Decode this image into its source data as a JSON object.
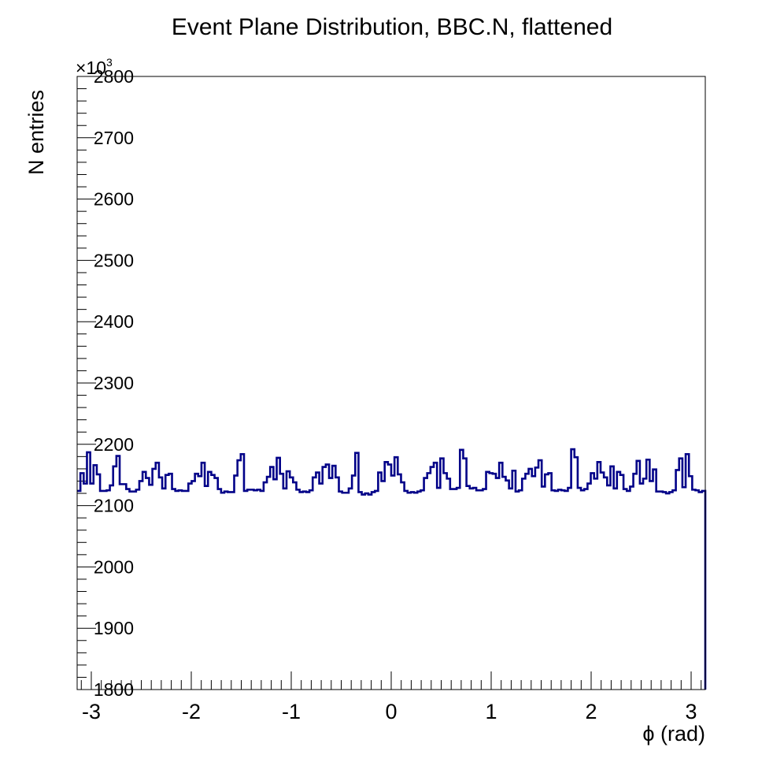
{
  "chart_data": {
    "type": "histogram",
    "title": "Event Plane Distribution, BBC.N, flattened",
    "xlabel": "ϕ (rad)",
    "ylabel": "N entries",
    "xlim": [
      -3.14159,
      3.14159
    ],
    "ylim": [
      1800,
      2800
    ],
    "y_scale_factor": {
      "base": "×10",
      "exponent": "3"
    },
    "x_ticks": [
      -3,
      -2,
      -1,
      0,
      1,
      2,
      3
    ],
    "x_tick_labels": [
      "-3",
      "-2",
      "-1",
      "0",
      "1",
      "2",
      "3"
    ],
    "y_ticks": [
      1800,
      1900,
      2000,
      2100,
      2200,
      2300,
      2400,
      2500,
      2600,
      2700,
      2800
    ],
    "y_tick_labels": [
      "1800",
      "1900",
      "2000",
      "2100",
      "2200",
      "2300",
      "2400",
      "2500",
      "2600",
      "2700",
      "2800"
    ],
    "line_color": "#000088",
    "series": [
      {
        "name": "BBC.N flattened",
        "values": [
          2124,
          2153,
          2136,
          2187,
          2136,
          2166,
          2151,
          2124,
          2124,
          2125,
          2133,
          2164,
          2181,
          2135,
          2135,
          2127,
          2123,
          2123,
          2126,
          2140,
          2155,
          2145,
          2134,
          2160,
          2170,
          2146,
          2128,
          2150,
          2152,
          2127,
          2124,
          2125,
          2124,
          2124,
          2136,
          2140,
          2152,
          2148,
          2170,
          2132,
          2155,
          2150,
          2145,
          2127,
          2121,
          2123,
          2122,
          2122,
          2149,
          2174,
          2184,
          2124,
          2126,
          2126,
          2125,
          2126,
          2124,
          2138,
          2147,
          2163,
          2143,
          2178,
          2152,
          2128,
          2156,
          2146,
          2138,
          2126,
          2122,
          2123,
          2122,
          2125,
          2146,
          2154,
          2136,
          2163,
          2167,
          2145,
          2165,
          2146,
          2123,
          2121,
          2121,
          2128,
          2149,
          2186,
          2122,
          2118,
          2120,
          2118,
          2122,
          2124,
          2154,
          2140,
          2171,
          2167,
          2149,
          2179,
          2151,
          2138,
          2124,
          2121,
          2122,
          2121,
          2123,
          2125,
          2145,
          2153,
          2163,
          2170,
          2129,
          2177,
          2153,
          2144,
          2127,
          2127,
          2129,
          2191,
          2177,
          2132,
          2128,
          2129,
          2125,
          2125,
          2127,
          2155,
          2153,
          2152,
          2145,
          2170,
          2147,
          2141,
          2128,
          2157,
          2123,
          2125,
          2144,
          2152,
          2160,
          2148,
          2162,
          2174,
          2131,
          2151,
          2153,
          2125,
          2124,
          2126,
          2125,
          2124,
          2129,
          2192,
          2179,
          2129,
          2125,
          2127,
          2136,
          2153,
          2144,
          2171,
          2154,
          2146,
          2133,
          2164,
          2128,
          2155,
          2150,
          2127,
          2124,
          2131,
          2152,
          2173,
          2136,
          2144,
          2175,
          2140,
          2159,
          2123,
          2123,
          2122,
          2120,
          2122,
          2125,
          2158,
          2177,
          2130,
          2184,
          2148,
          2126,
          2125,
          2122,
          2124
        ]
      }
    ]
  }
}
